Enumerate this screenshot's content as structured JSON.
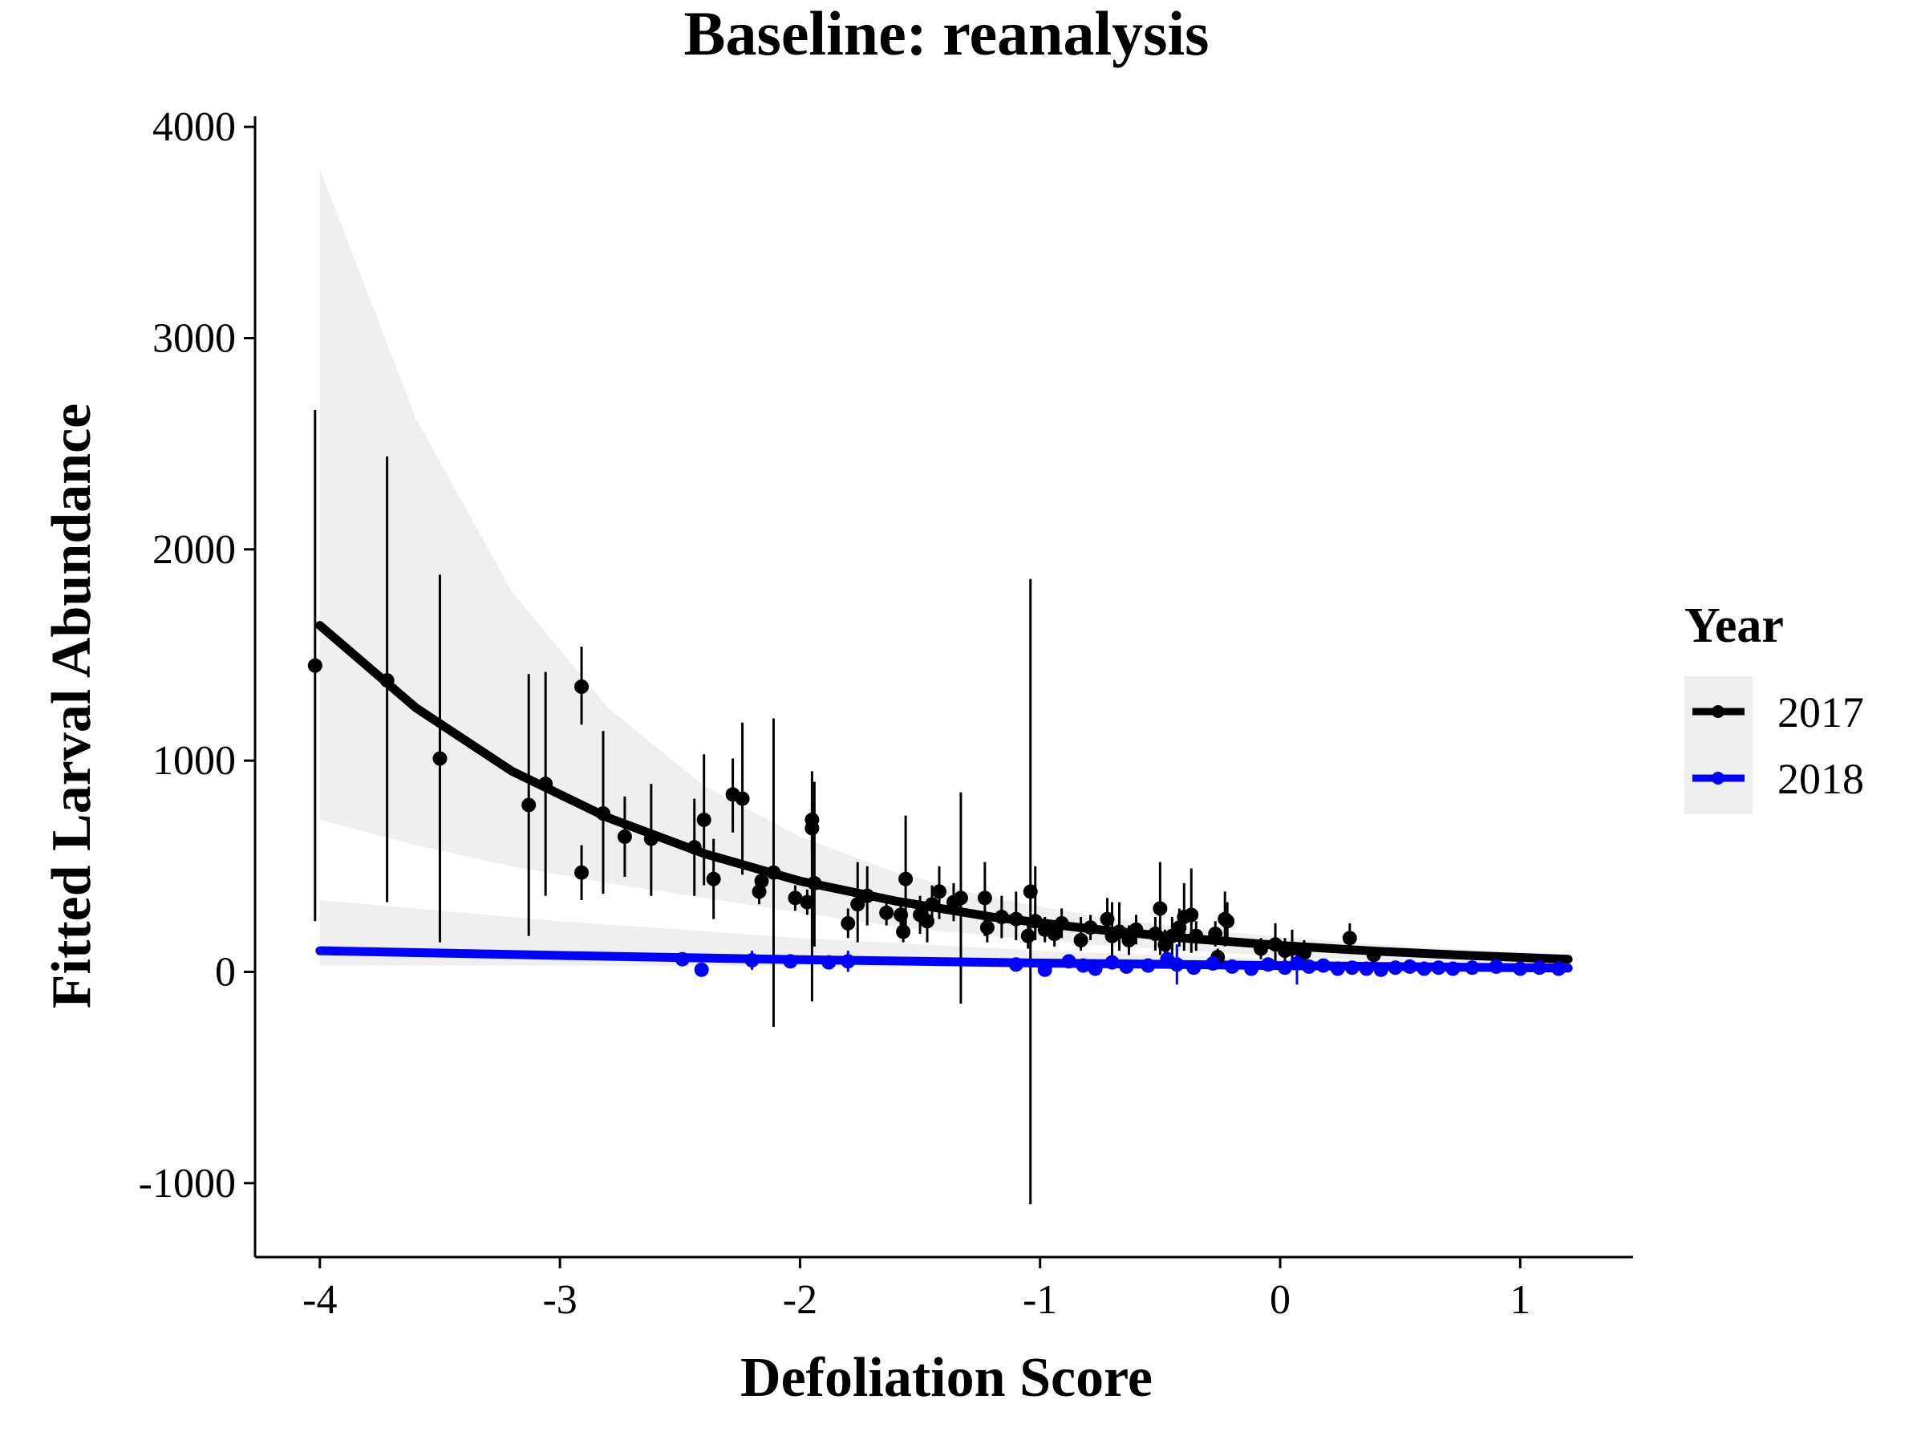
{
  "chart_data": {
    "type": "scatter",
    "title": "Baseline: reanalysis",
    "xlabel": "Defoliation Score",
    "ylabel": "Fitted Larval Abundance",
    "xlim": [
      -4.27,
      1.47
    ],
    "ylim": [
      -1350,
      4050
    ],
    "x_ticks": [
      -4,
      -3,
      -2,
      -1,
      0,
      1
    ],
    "x_tick_labels": [
      "-4",
      "-3",
      "-2",
      "-1",
      "0",
      "1"
    ],
    "y_ticks": [
      -1000,
      0,
      1000,
      2000,
      3000,
      4000
    ],
    "y_tick_labels": [
      "-1000",
      "0",
      "1000",
      "2000",
      "3000",
      "4000"
    ],
    "grid": false,
    "legend": {
      "title": "Year",
      "position": "right"
    },
    "series": [
      {
        "name": "2017",
        "color": "#000000",
        "fit_line": {
          "x": [
            -4.0,
            -3.6,
            -3.2,
            -2.8,
            -2.4,
            -2.0,
            -1.6,
            -1.2,
            -0.8,
            -0.4,
            0.0,
            0.4,
            0.8,
            1.2
          ],
          "y": [
            1640,
            1250,
            950,
            730,
            560,
            430,
            335,
            260,
            205,
            160,
            125,
            98,
            77,
            60
          ]
        },
        "band": {
          "x": [
            -4.0,
            -3.6,
            -3.2,
            -2.8,
            -2.4,
            -2.0,
            -1.6,
            -1.2,
            -0.8,
            -0.4,
            0.0,
            0.4,
            0.8,
            1.2
          ],
          "upper": [
            3800,
            2620,
            1800,
            1250,
            880,
            640,
            470,
            350,
            270,
            210,
            165,
            130,
            105,
            85
          ],
          "lower": [
            720,
            600,
            500,
            420,
            350,
            280,
            215,
            170,
            130,
            100,
            75,
            55,
            40,
            30
          ]
        },
        "points": [
          {
            "x": -4.02,
            "y": 1450,
            "lo": 240,
            "hi": 2660
          },
          {
            "x": -3.72,
            "y": 1380,
            "lo": 330,
            "hi": 2440
          },
          {
            "x": -3.5,
            "y": 1010,
            "lo": 140,
            "hi": 1880
          },
          {
            "x": -3.13,
            "y": 790,
            "lo": 170,
            "hi": 1410
          },
          {
            "x": -3.06,
            "y": 890,
            "lo": 360,
            "hi": 1420
          },
          {
            "x": -2.91,
            "y": 1350,
            "lo": 1170,
            "hi": 1540
          },
          {
            "x": -2.91,
            "y": 470,
            "lo": 340,
            "hi": 600
          },
          {
            "x": -2.82,
            "y": 750,
            "lo": 370,
            "hi": 1140
          },
          {
            "x": -2.73,
            "y": 640,
            "lo": 450,
            "hi": 830
          },
          {
            "x": -2.62,
            "y": 630,
            "lo": 360,
            "hi": 890
          },
          {
            "x": -2.44,
            "y": 590,
            "lo": 360,
            "hi": 820
          },
          {
            "x": -2.4,
            "y": 720,
            "lo": 410,
            "hi": 1030
          },
          {
            "x": -2.36,
            "y": 440,
            "lo": 250,
            "hi": 630
          },
          {
            "x": -2.28,
            "y": 840,
            "lo": 660,
            "hi": 1010
          },
          {
            "x": -2.24,
            "y": 820,
            "lo": 460,
            "hi": 1180
          },
          {
            "x": -2.17,
            "y": 380,
            "lo": 320,
            "hi": 440
          },
          {
            "x": -2.16,
            "y": 430,
            "lo": 370,
            "hi": 490
          },
          {
            "x": -2.11,
            "y": 470,
            "lo": -260,
            "hi": 1200
          },
          {
            "x": -2.02,
            "y": 350,
            "lo": 290,
            "hi": 410
          },
          {
            "x": -1.97,
            "y": 330,
            "lo": 270,
            "hi": 390
          },
          {
            "x": -1.95,
            "y": 720,
            "lo": -140,
            "hi": 950
          },
          {
            "x": -1.95,
            "y": 680,
            "lo": 560,
            "hi": 800
          },
          {
            "x": -1.94,
            "y": 420,
            "lo": 120,
            "hi": 900
          },
          {
            "x": -1.8,
            "y": 230,
            "lo": 160,
            "hi": 300
          },
          {
            "x": -1.76,
            "y": 320,
            "lo": 140,
            "hi": 520
          },
          {
            "x": -1.72,
            "y": 360,
            "lo": 220,
            "hi": 500
          },
          {
            "x": -1.64,
            "y": 280,
            "lo": 220,
            "hi": 340
          },
          {
            "x": -1.58,
            "y": 270,
            "lo": 200,
            "hi": 340
          },
          {
            "x": -1.56,
            "y": 440,
            "lo": 160,
            "hi": 740
          },
          {
            "x": -1.57,
            "y": 190,
            "lo": 140,
            "hi": 240
          },
          {
            "x": -1.5,
            "y": 270,
            "lo": 180,
            "hi": 360
          },
          {
            "x": -1.47,
            "y": 240,
            "lo": 140,
            "hi": 340
          },
          {
            "x": -1.45,
            "y": 320,
            "lo": 230,
            "hi": 410
          },
          {
            "x": -1.42,
            "y": 380,
            "lo": 250,
            "hi": 500
          },
          {
            "x": -1.36,
            "y": 330,
            "lo": 240,
            "hi": 420
          },
          {
            "x": -1.33,
            "y": 350,
            "lo": -150,
            "hi": 850
          },
          {
            "x": -1.23,
            "y": 350,
            "lo": 170,
            "hi": 520
          },
          {
            "x": -1.22,
            "y": 210,
            "lo": 140,
            "hi": 280
          },
          {
            "x": -1.16,
            "y": 260,
            "lo": 160,
            "hi": 360
          },
          {
            "x": -1.1,
            "y": 250,
            "lo": 150,
            "hi": 380
          },
          {
            "x": -1.04,
            "y": 380,
            "lo": -1100,
            "hi": 1860
          },
          {
            "x": -1.05,
            "y": 170,
            "lo": 110,
            "hi": 230
          },
          {
            "x": -1.02,
            "y": 240,
            "lo": 150,
            "hi": 500
          },
          {
            "x": -0.98,
            "y": 200,
            "lo": 140,
            "hi": 260
          },
          {
            "x": -0.94,
            "y": 180,
            "lo": 120,
            "hi": 240
          },
          {
            "x": -0.91,
            "y": 230,
            "lo": 160,
            "hi": 300
          },
          {
            "x": -0.83,
            "y": 150,
            "lo": 100,
            "hi": 260
          },
          {
            "x": -0.79,
            "y": 210,
            "lo": 150,
            "hi": 270
          },
          {
            "x": -0.72,
            "y": 250,
            "lo": 150,
            "hi": 350
          },
          {
            "x": -0.7,
            "y": 170,
            "lo": 60,
            "hi": 330
          },
          {
            "x": -0.67,
            "y": 190,
            "lo": 100,
            "hi": 330
          },
          {
            "x": -0.63,
            "y": 150,
            "lo": 80,
            "hi": 220
          },
          {
            "x": -0.6,
            "y": 200,
            "lo": 130,
            "hi": 270
          },
          {
            "x": -0.52,
            "y": 180,
            "lo": 100,
            "hi": 260
          },
          {
            "x": -0.5,
            "y": 300,
            "lo": 80,
            "hi": 520
          },
          {
            "x": -0.48,
            "y": 130,
            "lo": 60,
            "hi": 200
          },
          {
            "x": -0.45,
            "y": 170,
            "lo": 80,
            "hi": 260
          },
          {
            "x": -0.42,
            "y": 210,
            "lo": 120,
            "hi": 300
          },
          {
            "x": -0.4,
            "y": 260,
            "lo": 100,
            "hi": 420
          },
          {
            "x": -0.37,
            "y": 270,
            "lo": 90,
            "hi": 490
          },
          {
            "x": -0.35,
            "y": 170,
            "lo": 100,
            "hi": 240
          },
          {
            "x": -0.27,
            "y": 180,
            "lo": 120,
            "hi": 240
          },
          {
            "x": -0.23,
            "y": 250,
            "lo": 120,
            "hi": 380
          },
          {
            "x": -0.22,
            "y": 240,
            "lo": 150,
            "hi": 330
          },
          {
            "x": -0.26,
            "y": 70,
            "lo": 30,
            "hi": 110
          },
          {
            "x": -0.08,
            "y": 110,
            "lo": 60,
            "hi": 160
          },
          {
            "x": -0.02,
            "y": 130,
            "lo": 30,
            "hi": 230
          },
          {
            "x": 0.02,
            "y": 100,
            "lo": 40,
            "hi": 160
          },
          {
            "x": 0.05,
            "y": 110,
            "lo": 20,
            "hi": 200
          },
          {
            "x": 0.1,
            "y": 90,
            "lo": 30,
            "hi": 150
          },
          {
            "x": 0.29,
            "y": 160,
            "lo": 90,
            "hi": 230
          },
          {
            "x": 0.39,
            "y": 80,
            "lo": 40,
            "hi": 120
          }
        ]
      },
      {
        "name": "2018",
        "color": "#0000ff",
        "fit_line": {
          "x": [
            -4.0,
            -3.0,
            -2.0,
            -1.0,
            0.0,
            1.2
          ],
          "y": [
            100,
            78,
            58,
            42,
            30,
            18
          ]
        },
        "band": {
          "x": [
            -4.0,
            -3.0,
            -2.0,
            -1.0,
            0.0,
            1.2
          ],
          "upper": [
            340,
            240,
            160,
            100,
            60,
            30
          ],
          "lower": [
            30,
            30,
            28,
            24,
            18,
            10
          ]
        },
        "points": [
          {
            "x": -2.49,
            "y": 60,
            "lo": 40,
            "hi": 80
          },
          {
            "x": -2.41,
            "y": 10,
            "lo": 0,
            "hi": 25
          },
          {
            "x": -2.2,
            "y": 55,
            "lo": 10,
            "hi": 100
          },
          {
            "x": -2.04,
            "y": 50,
            "lo": 30,
            "hi": 70
          },
          {
            "x": -1.88,
            "y": 45,
            "lo": 20,
            "hi": 70
          },
          {
            "x": -1.8,
            "y": 50,
            "lo": 0,
            "hi": 100
          },
          {
            "x": -1.1,
            "y": 35,
            "lo": 20,
            "hi": 50
          },
          {
            "x": -0.98,
            "y": 10,
            "lo": 0,
            "hi": 25
          },
          {
            "x": -0.88,
            "y": 50,
            "lo": 20,
            "hi": 80
          },
          {
            "x": -0.82,
            "y": 30,
            "lo": 10,
            "hi": 50
          },
          {
            "x": -0.77,
            "y": 15,
            "lo": 0,
            "hi": 30
          },
          {
            "x": -0.7,
            "y": 45,
            "lo": 20,
            "hi": 70
          },
          {
            "x": -0.64,
            "y": 25,
            "lo": 5,
            "hi": 45
          },
          {
            "x": -0.55,
            "y": 30,
            "lo": 10,
            "hi": 50
          },
          {
            "x": -0.47,
            "y": 60,
            "lo": 20,
            "hi": 100
          },
          {
            "x": -0.43,
            "y": 35,
            "lo": -60,
            "hi": 130
          },
          {
            "x": -0.36,
            "y": 20,
            "lo": 5,
            "hi": 35
          },
          {
            "x": -0.28,
            "y": 40,
            "lo": 20,
            "hi": 60
          },
          {
            "x": -0.2,
            "y": 25,
            "lo": 10,
            "hi": 40
          },
          {
            "x": -0.12,
            "y": 15,
            "lo": 5,
            "hi": 25
          },
          {
            "x": -0.05,
            "y": 35,
            "lo": 15,
            "hi": 55
          },
          {
            "x": 0.02,
            "y": 20,
            "lo": 5,
            "hi": 35
          },
          {
            "x": 0.07,
            "y": 40,
            "lo": -60,
            "hi": 140
          },
          {
            "x": 0.12,
            "y": 25,
            "lo": 10,
            "hi": 40
          },
          {
            "x": 0.18,
            "y": 30,
            "lo": 10,
            "hi": 50
          },
          {
            "x": 0.24,
            "y": 15,
            "lo": 5,
            "hi": 25
          },
          {
            "x": 0.3,
            "y": 20,
            "lo": 10,
            "hi": 30
          },
          {
            "x": 0.36,
            "y": 15,
            "lo": 5,
            "hi": 25
          },
          {
            "x": 0.42,
            "y": 10,
            "lo": 0,
            "hi": 20
          },
          {
            "x": 0.48,
            "y": 20,
            "lo": 10,
            "hi": 30
          },
          {
            "x": 0.54,
            "y": 25,
            "lo": 15,
            "hi": 35
          },
          {
            "x": 0.6,
            "y": 15,
            "lo": 5,
            "hi": 25
          },
          {
            "x": 0.66,
            "y": 20,
            "lo": 10,
            "hi": 30
          },
          {
            "x": 0.72,
            "y": 15,
            "lo": 5,
            "hi": 25
          },
          {
            "x": 0.8,
            "y": 20,
            "lo": 10,
            "hi": 30
          },
          {
            "x": 0.9,
            "y": 25,
            "lo": 15,
            "hi": 35
          },
          {
            "x": 1.0,
            "y": 15,
            "lo": 5,
            "hi": 25
          },
          {
            "x": 1.08,
            "y": 20,
            "lo": 10,
            "hi": 30
          },
          {
            "x": 1.16,
            "y": 15,
            "lo": 5,
            "hi": 25
          }
        ]
      }
    ],
    "legend_items": [
      {
        "label": "2017",
        "color": "#000000"
      },
      {
        "label": "2018",
        "color": "#0000ff"
      }
    ],
    "band_color": "#bfbfbf"
  }
}
